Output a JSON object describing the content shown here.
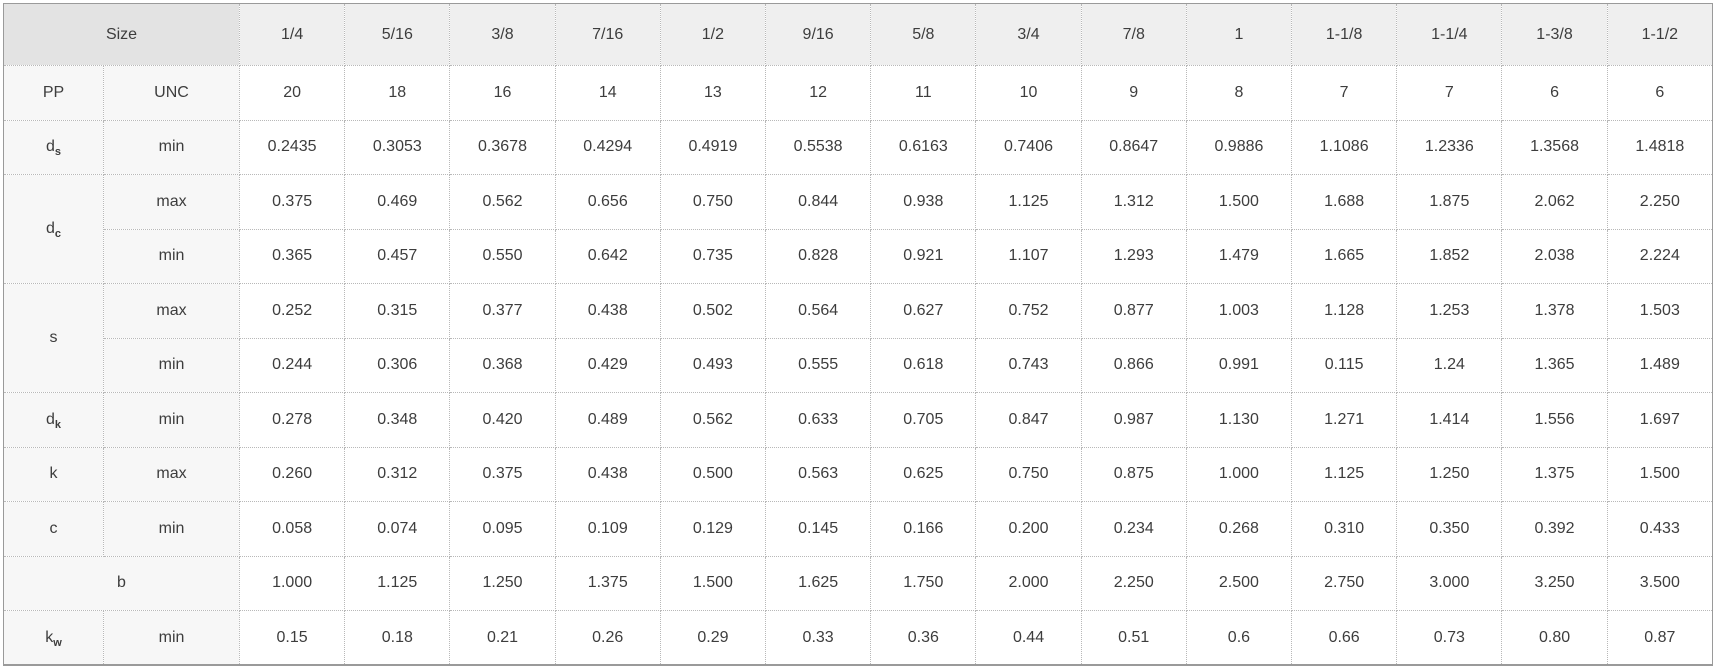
{
  "table": {
    "corner_label": "Size",
    "accent_color": "#1878be",
    "sizes": [
      "1/4",
      "5/16",
      "3/8",
      "7/16",
      "1/2",
      "9/16",
      "5/8",
      "3/4",
      "7/8",
      "1",
      "1-1/8",
      "1-1/4",
      "1-3/8",
      "1-1/2"
    ],
    "rows": [
      {
        "id": "pp-unc",
        "label": {
          "text": "PP"
        },
        "qualifier": "UNC",
        "values": [
          "20",
          "18",
          "16",
          "14",
          "13",
          "12",
          "11",
          "10",
          "9",
          "8",
          "7",
          "7",
          "6",
          "6"
        ]
      },
      {
        "id": "ds-min",
        "label": {
          "text": "d",
          "sub": "s"
        },
        "qualifier": "min",
        "values": [
          "0.2435",
          "0.3053",
          "0.3678",
          "0.4294",
          "0.4919",
          "0.5538",
          "0.6163",
          "0.7406",
          "0.8647",
          "0.9886",
          "1.1086",
          "1.2336",
          "1.3568",
          "1.4818"
        ]
      },
      {
        "id": "dc-max",
        "label": {
          "text": "d",
          "sub": "c",
          "rowspan": 2
        },
        "qualifier": "max",
        "values": [
          "0.375",
          "0.469",
          "0.562",
          "0.656",
          "0.750",
          "0.844",
          "0.938",
          "1.125",
          "1.312",
          "1.500",
          "1.688",
          "1.875",
          "2.062",
          "2.250"
        ]
      },
      {
        "id": "dc-min",
        "qualifier": "min",
        "values": [
          "0.365",
          "0.457",
          "0.550",
          "0.642",
          "0.735",
          "0.828",
          "0.921",
          "1.107",
          "1.293",
          "1.479",
          "1.665",
          "1.852",
          "2.038",
          "2.224"
        ]
      },
      {
        "id": "s-max",
        "label": {
          "text": "s",
          "rowspan": 2
        },
        "qualifier": "max",
        "values": [
          "0.252",
          "0.315",
          "0.377",
          "0.438",
          "0.502",
          "0.564",
          "0.627",
          "0.752",
          "0.877",
          "1.003",
          "1.128",
          "1.253",
          "1.378",
          "1.503"
        ]
      },
      {
        "id": "s-min",
        "qualifier": "min",
        "values": [
          "0.244",
          "0.306",
          "0.368",
          "0.429",
          "0.493",
          "0.555",
          "0.618",
          "0.743",
          "0.866",
          "0.991",
          "0.115",
          "1.24",
          "1.365",
          "1.489"
        ]
      },
      {
        "id": "dk-min",
        "label": {
          "text": "d",
          "sub": "k"
        },
        "qualifier": "min",
        "values": [
          "0.278",
          "0.348",
          "0.420",
          "0.489",
          "0.562",
          "0.633",
          "0.705",
          "0.847",
          "0.987",
          "1.130",
          "1.271",
          "1.414",
          "1.556",
          "1.697"
        ]
      },
      {
        "id": "k-max",
        "label": {
          "text": "k"
        },
        "qualifier": "max",
        "values": [
          "0.260",
          "0.312",
          "0.375",
          "0.438",
          "0.500",
          "0.563",
          "0.625",
          "0.750",
          "0.875",
          "1.000",
          "1.125",
          "1.250",
          "1.375",
          "1.500"
        ]
      },
      {
        "id": "c-min",
        "label": {
          "text": "c"
        },
        "qualifier": "min",
        "values": [
          "0.058",
          "0.074",
          "0.095",
          "0.109",
          "0.129",
          "0.145",
          "0.166",
          "0.200",
          "0.234",
          "0.268",
          "0.310",
          "0.350",
          "0.392",
          "0.433"
        ]
      },
      {
        "id": "b",
        "label": {
          "text": "b",
          "colspan": 2
        },
        "values": [
          "1.000",
          "1.125",
          "1.250",
          "1.375",
          "1.500",
          "1.625",
          "1.750",
          "2.000",
          "2.250",
          "2.500",
          "2.750",
          "3.000",
          "3.250",
          "3.500"
        ]
      },
      {
        "id": "kw-min",
        "label": {
          "text": "k",
          "sub": "w"
        },
        "qualifier": "min",
        "values": [
          "0.15",
          "0.18",
          "0.21",
          "0.26",
          "0.29",
          "0.33",
          "0.36",
          "0.44",
          "0.51",
          "0.6",
          "0.66",
          "0.73",
          "0.80",
          "0.87"
        ]
      }
    ]
  }
}
